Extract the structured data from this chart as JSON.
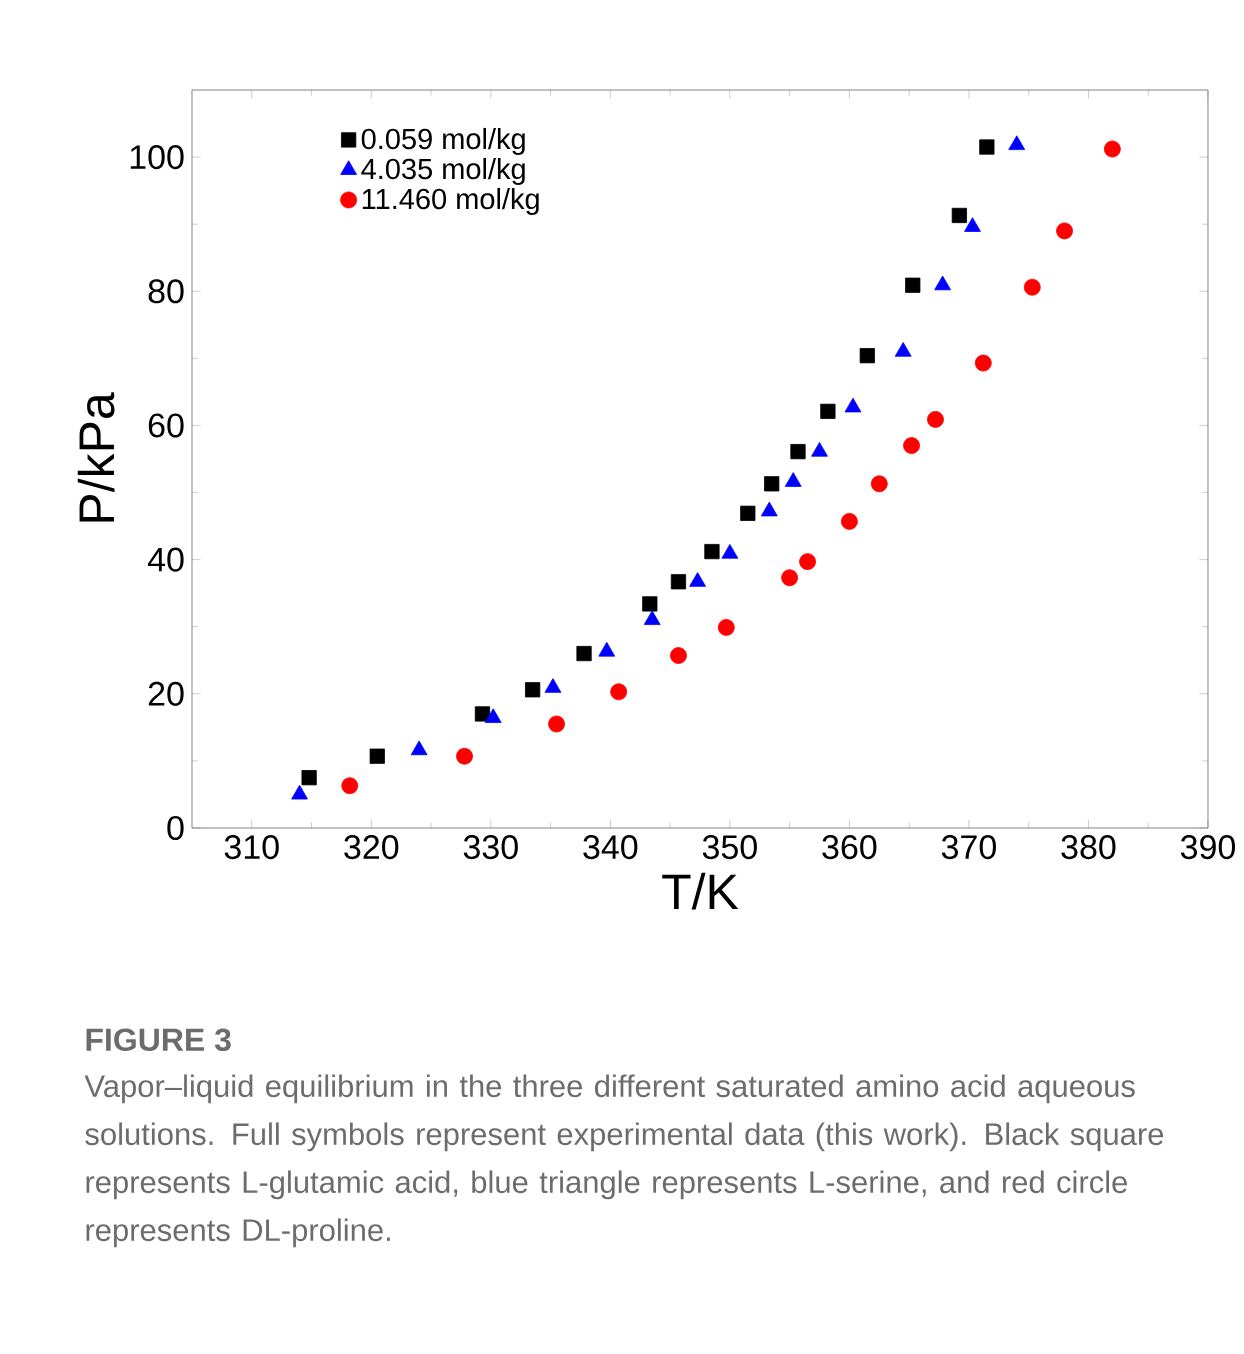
{
  "chart_data": {
    "type": "scatter",
    "xlabel": "T/K",
    "ylabel": "P/kPa",
    "xlim": [
      305,
      390
    ],
    "ylim": [
      0,
      110
    ],
    "xticks": [
      310,
      320,
      330,
      340,
      350,
      360,
      370,
      380,
      390
    ],
    "yticks": [
      0,
      20,
      40,
      60,
      80,
      100
    ],
    "grid": false,
    "legend": "top left",
    "series": [
      {
        "name": "0.059 mol/kg",
        "color": "#000000",
        "marker": "square",
        "x": [
          314.8,
          320.5,
          329.3,
          333.5,
          337.8,
          343.3,
          345.7,
          348.5,
          351.5,
          353.5,
          355.7,
          358.2,
          361.5,
          365.3,
          369.2,
          371.5
        ],
        "values": [
          7.5,
          10.7,
          17,
          20.6,
          26,
          33.4,
          36.7,
          41.2,
          46.9,
          51.3,
          56.1,
          62.1,
          70.4,
          80.9,
          91.3,
          101.5
        ]
      },
      {
        "name": "4.035 mol/kg",
        "color": "#0000ff",
        "marker": "triangle",
        "x": [
          314,
          324,
          330.2,
          335.2,
          339.7,
          343.5,
          347.3,
          350,
          353.3,
          355.3,
          357.5,
          360.3,
          364.5,
          367.8,
          370.3,
          374
        ],
        "values": [
          5,
          11.6,
          16.4,
          20.9,
          26.3,
          31,
          36.7,
          40.9,
          47.2,
          51.6,
          56.1,
          62.7,
          71,
          80.9,
          89.6,
          101.8
        ]
      },
      {
        "name": "11.460 mol/kg",
        "color": "#ff0000",
        "marker": "circle",
        "x": [
          318.2,
          327.8,
          335.5,
          340.7,
          345.7,
          349.7,
          355,
          356.5,
          360,
          362.5,
          365.2,
          367.2,
          371.2,
          375.3,
          378,
          382
        ],
        "values": [
          6.3,
          10.7,
          15.5,
          20.3,
          25.7,
          29.9,
          37.3,
          39.7,
          45.7,
          51.3,
          57,
          60.9,
          69.3,
          80.6,
          89,
          101.2
        ]
      }
    ],
    "annotations": [
      "FIGURE 3",
      "Vapor–liquid equilibrium in the three different saturated amino acid aqueous solutions. Full symbols represent experimental data (this work). Black square represents L-glutamic acid, blue triangle represents L-serine, and red circle represents DL-proline."
    ]
  }
}
